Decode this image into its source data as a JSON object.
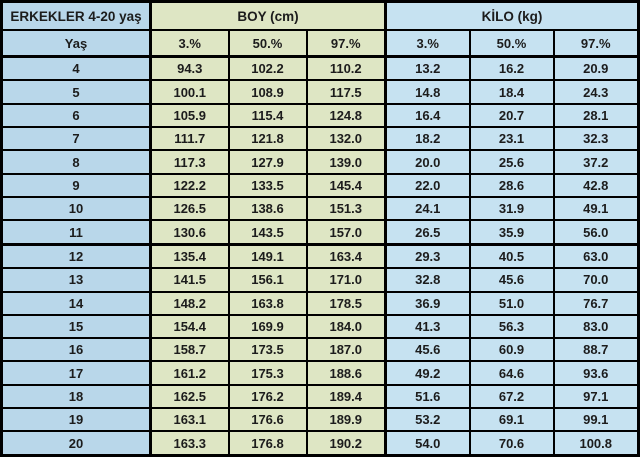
{
  "chart_data": {
    "type": "table",
    "title": "ERKEKLER 4-20 yaş",
    "age_label": "Yaş",
    "column_groups": [
      "BOY (cm)",
      "KİLO (kg)"
    ],
    "percentiles": [
      "3.%",
      "50.%",
      "97.%"
    ],
    "columns": [
      "Yaş",
      "BOY 3.%",
      "BOY 50.%",
      "BOY 97.%",
      "KİLO 3.%",
      "KİLO 50.%",
      "KİLO 97.%"
    ],
    "rows": [
      [
        "4",
        "94.3",
        "102.2",
        "110.2",
        "13.2",
        "16.2",
        "20.9"
      ],
      [
        "5",
        "100.1",
        "108.9",
        "117.5",
        "14.8",
        "18.4",
        "24.3"
      ],
      [
        "6",
        "105.9",
        "115.4",
        "124.8",
        "16.4",
        "20.7",
        "28.1"
      ],
      [
        "7",
        "111.7",
        "121.8",
        "132.0",
        "18.2",
        "23.1",
        "32.3"
      ],
      [
        "8",
        "117.3",
        "127.9",
        "139.0",
        "20.0",
        "25.6",
        "37.2"
      ],
      [
        "9",
        "122.2",
        "133.5",
        "145.4",
        "22.0",
        "28.6",
        "42.8"
      ],
      [
        "10",
        "126.5",
        "138.6",
        "151.3",
        "24.1",
        "31.9",
        "49.1"
      ],
      [
        "11",
        "130.6",
        "143.5",
        "157.0",
        "26.5",
        "35.9",
        "56.0"
      ],
      [
        "12",
        "135.4",
        "149.1",
        "163.4",
        "29.3",
        "40.5",
        "63.0"
      ],
      [
        "13",
        "141.5",
        "156.1",
        "171.0",
        "32.8",
        "45.6",
        "70.0"
      ],
      [
        "14",
        "148.2",
        "163.8",
        "178.5",
        "36.9",
        "51.0",
        "76.7"
      ],
      [
        "15",
        "154.4",
        "169.9",
        "184.0",
        "41.3",
        "56.3",
        "83.0"
      ],
      [
        "16",
        "158.7",
        "173.5",
        "187.0",
        "45.6",
        "60.9",
        "88.7"
      ],
      [
        "17",
        "161.2",
        "175.3",
        "188.6",
        "49.2",
        "64.6",
        "93.6"
      ],
      [
        "18",
        "162.5",
        "176.2",
        "189.4",
        "51.6",
        "67.2",
        "97.1"
      ],
      [
        "19",
        "163.1",
        "176.6",
        "189.9",
        "53.2",
        "69.1",
        "99.1"
      ],
      [
        "20",
        "163.3",
        "176.8",
        "190.2",
        "54.0",
        "70.6",
        "100.8"
      ]
    ],
    "layout_hints": {
      "thick_divider_after_row": "11",
      "grid": "all-borders-black"
    }
  },
  "colors": {
    "age_section_blue": "#b9d7ea",
    "height_section_green": "#dee6c4",
    "weight_section_blue": "#c6e2f1",
    "border_black": "#000000",
    "text": "#1c1c1c"
  }
}
